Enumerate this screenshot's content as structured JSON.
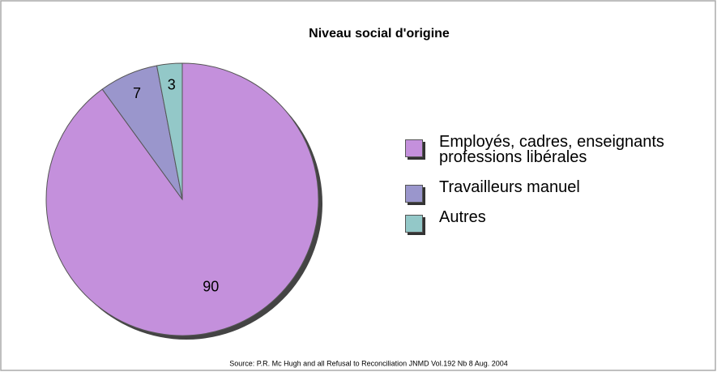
{
  "chart_data": {
    "type": "pie",
    "title": "Niveau social d'origine",
    "categories": [
      "Employés, cadres, enseignants professions libérales",
      "Travailleurs manuel",
      "Autres"
    ],
    "values": [
      90,
      7,
      3
    ],
    "colors": [
      "#c490dc",
      "#9a96cc",
      "#93c8c8"
    ],
    "source": "Source: P.R. Mc Hugh and all  Refusal to Reconciliation JNMD Vol.192 Nb 8 Aug. 2004"
  }
}
